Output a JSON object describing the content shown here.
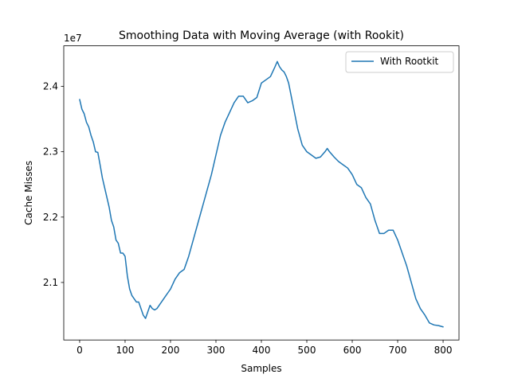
{
  "chart_data": {
    "type": "line",
    "title": "Smoothing Data with Moving Average (with Rookit)",
    "xlabel": "Samples",
    "ylabel": "Cache Misses",
    "offset_label": "1e7",
    "xlim": [
      -35,
      835
    ],
    "ylim": [
      20120000,
      24620000
    ],
    "x_ticks": [
      0,
      100,
      200,
      300,
      400,
      500,
      600,
      700,
      800
    ],
    "x_tick_labels": [
      "0",
      "100",
      "200",
      "300",
      "400",
      "500",
      "600",
      "700",
      "800"
    ],
    "y_ticks": [
      21000000,
      22000000,
      23000000,
      24000000
    ],
    "y_tick_labels": [
      "2.1",
      "2.2",
      "2.3",
      "2.4"
    ],
    "legend": {
      "position": "top-right",
      "entries": [
        "With Rootkit"
      ]
    },
    "series": [
      {
        "name": "With Rootkit",
        "color": "#1f77b4",
        "x": [
          0,
          5,
          10,
          15,
          20,
          25,
          30,
          35,
          40,
          45,
          50,
          55,
          60,
          65,
          70,
          75,
          80,
          85,
          90,
          95,
          100,
          105,
          110,
          115,
          120,
          125,
          130,
          135,
          140,
          145,
          150,
          155,
          160,
          165,
          170,
          175,
          180,
          185,
          190,
          195,
          200,
          210,
          220,
          230,
          240,
          250,
          260,
          270,
          280,
          290,
          300,
          310,
          320,
          330,
          340,
          350,
          360,
          370,
          380,
          390,
          400,
          410,
          420,
          430,
          435,
          440,
          445,
          450,
          455,
          460,
          470,
          480,
          490,
          500,
          510,
          520,
          530,
          540,
          545,
          550,
          560,
          570,
          580,
          590,
          600,
          610,
          620,
          630,
          640,
          650,
          660,
          670,
          680,
          690,
          700,
          710,
          720,
          730,
          740,
          750,
          760,
          770,
          780,
          790,
          800
        ],
        "y": [
          23800000,
          23650000,
          23580000,
          23450000,
          23380000,
          23250000,
          23150000,
          23000000,
          22990000,
          22800000,
          22600000,
          22450000,
          22300000,
          22150000,
          21950000,
          21850000,
          21650000,
          21600000,
          21450000,
          21450000,
          21400000,
          21100000,
          20900000,
          20800000,
          20750000,
          20700000,
          20700000,
          20600000,
          20500000,
          20450000,
          20550000,
          20650000,
          20600000,
          20580000,
          20600000,
          20650000,
          20700000,
          20750000,
          20800000,
          20850000,
          20900000,
          21050000,
          21150000,
          21200000,
          21400000,
          21650000,
          21900000,
          22150000,
          22400000,
          22650000,
          22950000,
          23250000,
          23450000,
          23600000,
          23750000,
          23850000,
          23850000,
          23750000,
          23780000,
          23830000,
          24050000,
          24100000,
          24150000,
          24300000,
          24380000,
          24300000,
          24250000,
          24220000,
          24150000,
          24050000,
          23700000,
          23350000,
          23100000,
          23000000,
          22950000,
          22900000,
          22920000,
          23000000,
          23050000,
          23000000,
          22920000,
          22850000,
          22800000,
          22750000,
          22650000,
          22500000,
          22450000,
          22300000,
          22200000,
          21950000,
          21750000,
          21750000,
          21800000,
          21800000,
          21650000,
          21450000,
          21250000,
          21000000,
          20750000,
          20600000,
          20500000,
          20380000,
          20350000,
          20340000,
          20320000
        ]
      }
    ]
  }
}
